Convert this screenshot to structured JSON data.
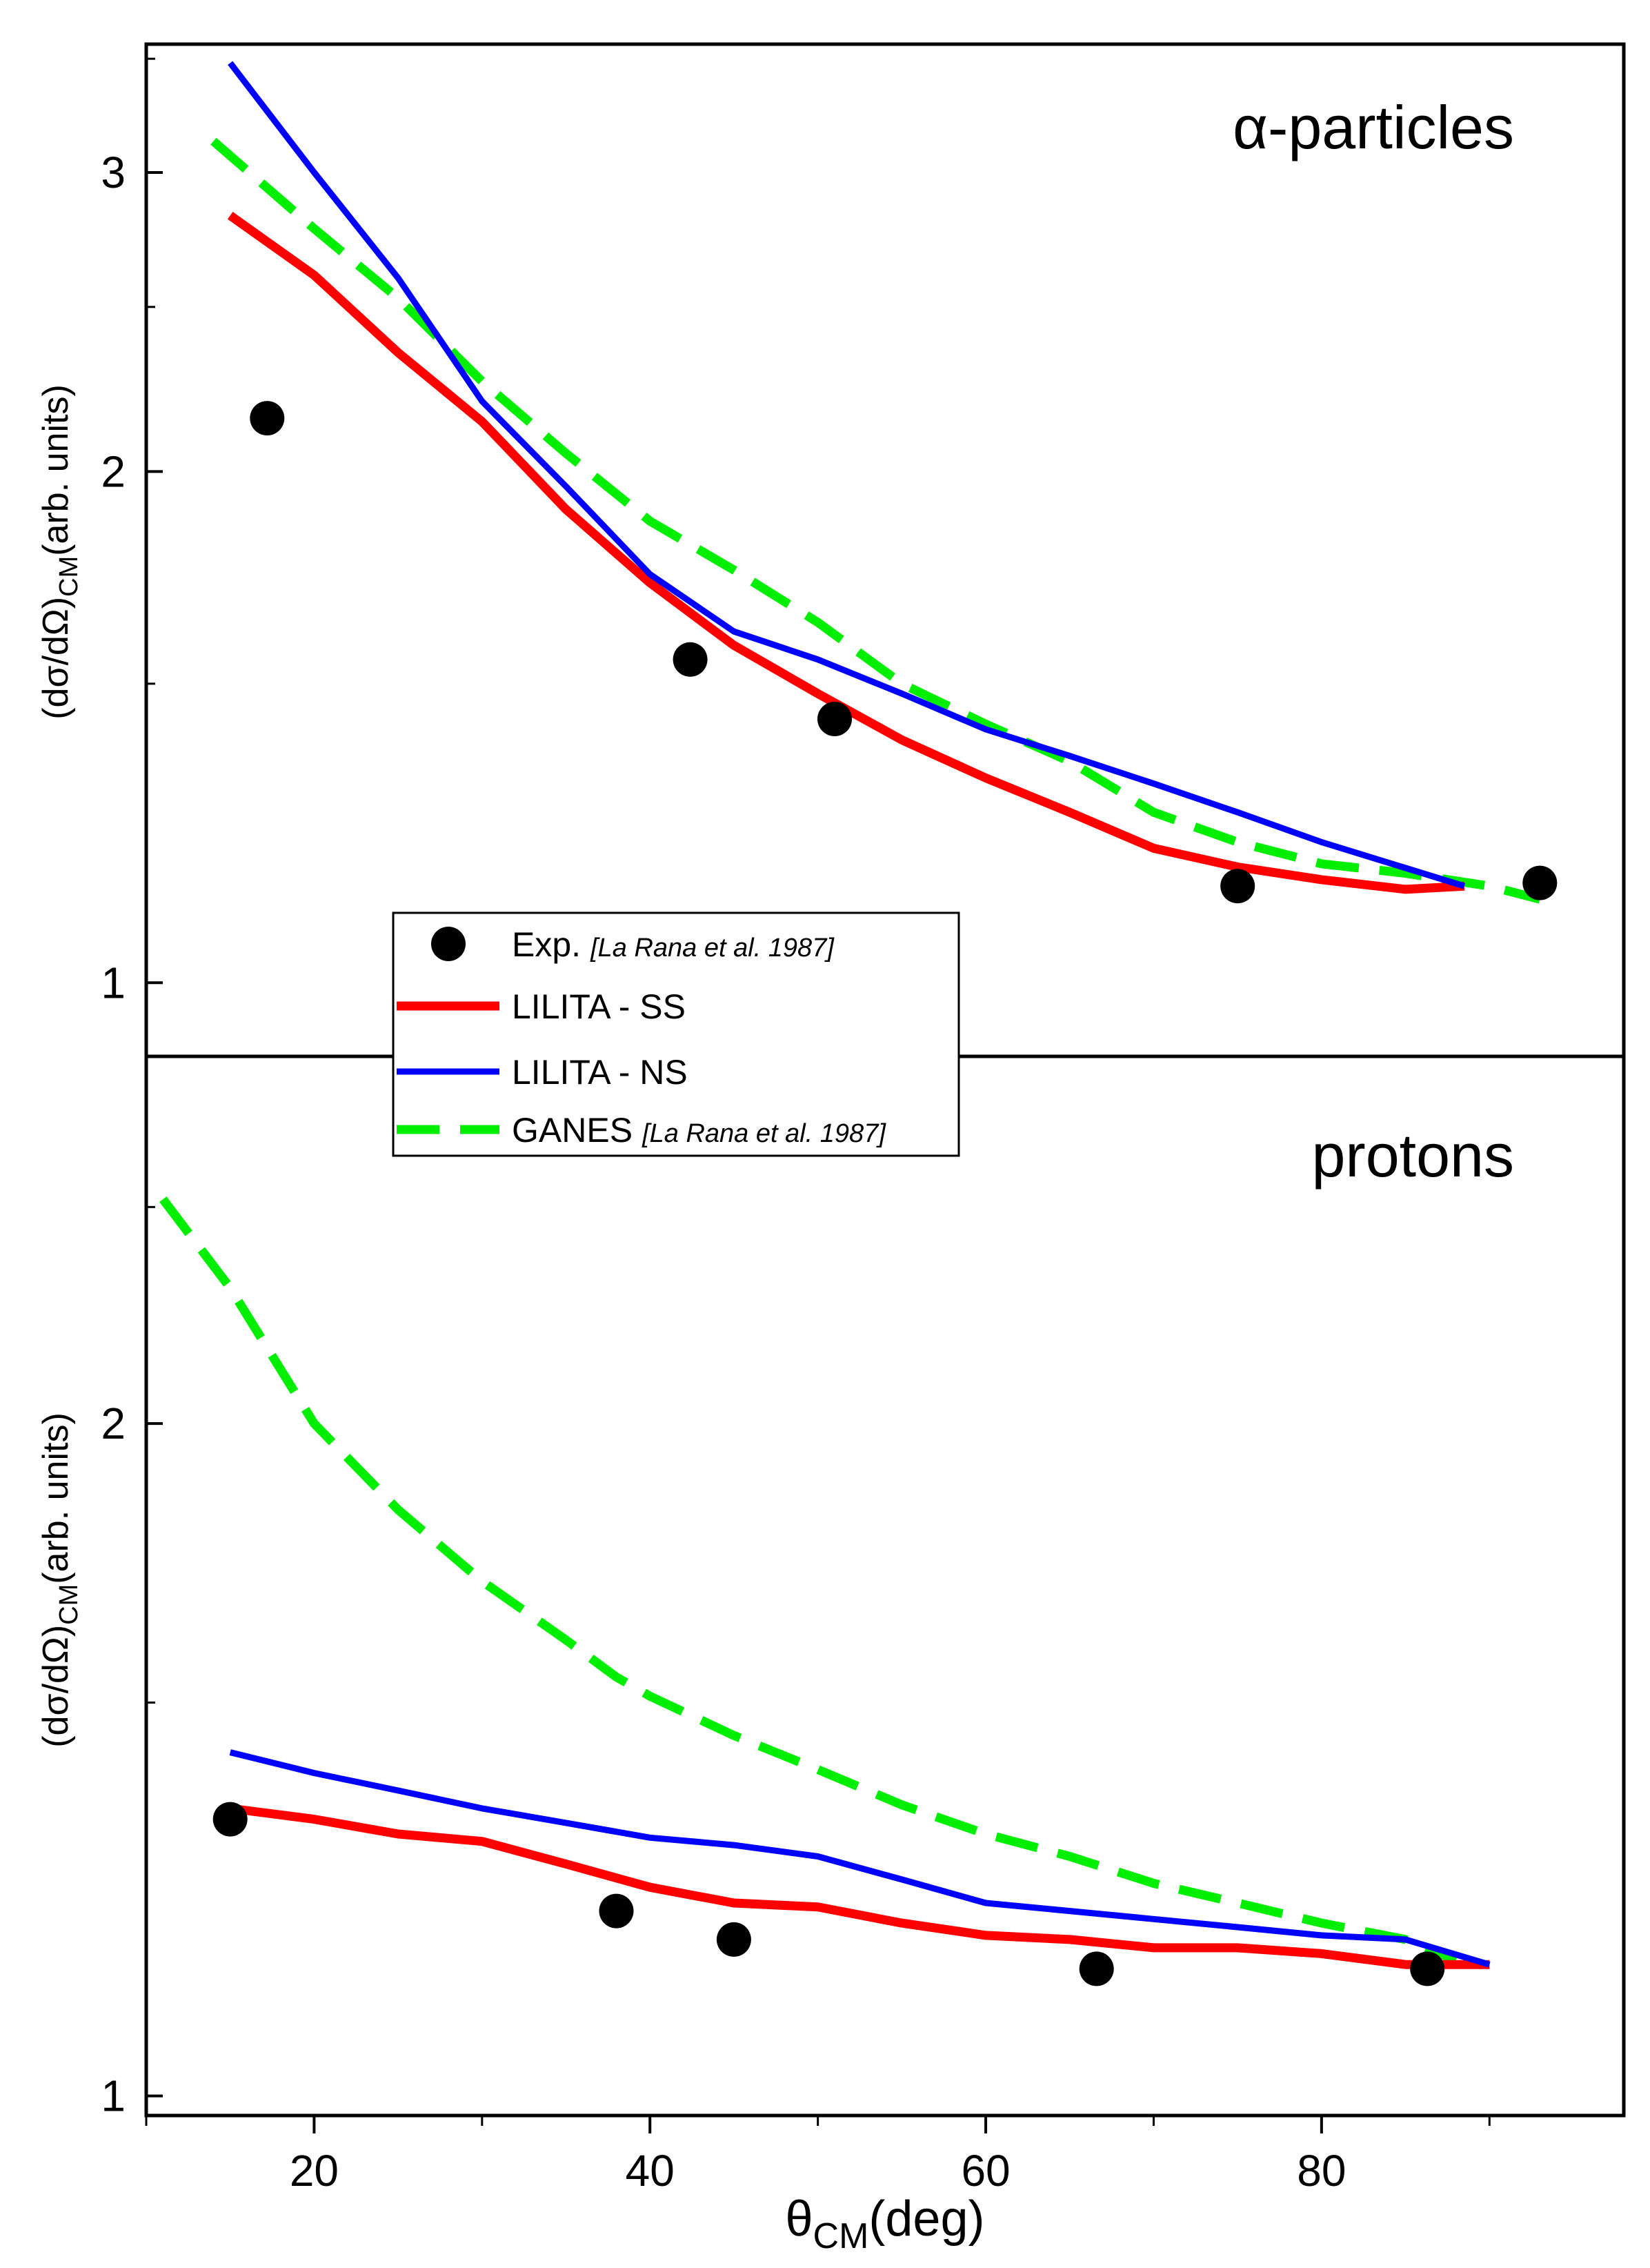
{
  "chart_data": [
    {
      "type": "line",
      "panel": "top",
      "annotation": "α-particles",
      "xlabel": "",
      "ylabel": "(dσ/dΩ)CM(arb. units)",
      "ylabel_parts": {
        "main": "(dσ/dΩ)",
        "sub": "CM",
        "rest": "(arb. units)"
      },
      "y_scale": "log",
      "xlim": [
        10,
        98
      ],
      "ylim": [
        0.905,
        3.57
      ],
      "y_major_ticks": [
        {
          "v": 1,
          "label": "1"
        },
        {
          "v": 2,
          "label": "2"
        },
        {
          "v": 3,
          "label": "3"
        }
      ],
      "y_minor_ticks": [
        1.5,
        2.5,
        3.5
      ],
      "series": [
        {
          "name": "Exp.",
          "style": "marker",
          "color": "#000000",
          "points": [
            [
              17.2,
              2.15
            ],
            [
              42.4,
              1.55
            ],
            [
              51.0,
              1.43
            ],
            [
              75.0,
              1.14
            ],
            [
              93.0,
              1.145
            ]
          ]
        },
        {
          "name": "LILITA - SS",
          "style": "solid",
          "color": "#ff0000",
          "points": [
            [
              15,
              2.83
            ],
            [
              20,
              2.61
            ],
            [
              25,
              2.35
            ],
            [
              30,
              2.14
            ],
            [
              35,
              1.9
            ],
            [
              40,
              1.72
            ],
            [
              45,
              1.58
            ],
            [
              50,
              1.48
            ],
            [
              55,
              1.39
            ],
            [
              60,
              1.32
            ],
            [
              65,
              1.26
            ],
            [
              70,
              1.2
            ],
            [
              75,
              1.17
            ],
            [
              80,
              1.15
            ],
            [
              85,
              1.135
            ],
            [
              88.5,
              1.14
            ]
          ]
        },
        {
          "name": "LILITA - NS",
          "style": "solid",
          "color": "#0000ff",
          "points": [
            [
              15,
              3.48
            ],
            [
              20,
              3.0
            ],
            [
              25,
              2.6
            ],
            [
              30,
              2.2
            ],
            [
              35,
              1.96
            ],
            [
              40,
              1.74
            ],
            [
              45,
              1.61
            ],
            [
              50,
              1.55
            ],
            [
              55,
              1.48
            ],
            [
              60,
              1.41
            ],
            [
              65,
              1.36
            ],
            [
              70,
              1.31
            ],
            [
              75,
              1.26
            ],
            [
              80,
              1.21
            ],
            [
              88.5,
              1.14
            ]
          ]
        },
        {
          "name": "GANES",
          "style": "dashed",
          "color": "#00ee00",
          "points": [
            [
              14,
              3.13
            ],
            [
              20,
              2.78
            ],
            [
              25,
              2.53
            ],
            [
              30,
              2.26
            ],
            [
              35,
              2.05
            ],
            [
              40,
              1.87
            ],
            [
              45,
              1.75
            ],
            [
              50,
              1.63
            ],
            [
              55,
              1.5
            ],
            [
              60,
              1.42
            ],
            [
              65,
              1.35
            ],
            [
              70,
              1.26
            ],
            [
              75,
              1.21
            ],
            [
              80,
              1.175
            ],
            [
              85,
              1.16
            ],
            [
              90,
              1.14
            ],
            [
              93,
              1.12
            ]
          ]
        }
      ]
    },
    {
      "type": "line",
      "panel": "bottom",
      "annotation": "protons",
      "xlabel": "θCM(deg)",
      "xlabel_parts": {
        "main": "θ",
        "sub": "CM",
        "rest": "(deg)"
      },
      "ylabel": "(dσ/dΩ)CM(arb. units)",
      "ylabel_parts": {
        "main": "(dσ/dΩ)",
        "sub": "CM",
        "rest": "(arb. units)"
      },
      "y_scale": "log",
      "xlim": [
        10,
        98
      ],
      "ylim": [
        0.98,
        2.92
      ],
      "x_major_ticks": [
        {
          "v": 20,
          "label": "20"
        },
        {
          "v": 40,
          "label": "40"
        },
        {
          "v": 60,
          "label": "60"
        },
        {
          "v": 80,
          "label": "80"
        }
      ],
      "x_minor_ticks": [
        10,
        30,
        50,
        70,
        90
      ],
      "y_major_ticks": [
        {
          "v": 1,
          "label": "1"
        },
        {
          "v": 2,
          "label": "2"
        }
      ],
      "y_minor_ticks": [
        1.5,
        2.5
      ],
      "series": [
        {
          "name": "Exp.",
          "style": "marker",
          "color": "#000000",
          "points": [
            [
              15.0,
              1.33
            ],
            [
              38.0,
              1.21
            ],
            [
              45.0,
              1.175
            ],
            [
              66.6,
              1.14
            ],
            [
              86.3,
              1.14
            ]
          ]
        },
        {
          "name": "LILITA - SS",
          "style": "solid",
          "color": "#ff0000",
          "points": [
            [
              15,
              1.345
            ],
            [
              20,
              1.33
            ],
            [
              25,
              1.31
            ],
            [
              30,
              1.3
            ],
            [
              35,
              1.27
            ],
            [
              40,
              1.24
            ],
            [
              45,
              1.22
            ],
            [
              50,
              1.215
            ],
            [
              55,
              1.195
            ],
            [
              60,
              1.18
            ],
            [
              65,
              1.175
            ],
            [
              70,
              1.165
            ],
            [
              75,
              1.165
            ],
            [
              80,
              1.158
            ],
            [
              85,
              1.145
            ],
            [
              90,
              1.145
            ]
          ]
        },
        {
          "name": "LILITA - NS",
          "style": "solid",
          "color": "#0000ff",
          "points": [
            [
              15,
              1.425
            ],
            [
              20,
              1.395
            ],
            [
              25,
              1.37
            ],
            [
              30,
              1.345
            ],
            [
              35,
              1.325
            ],
            [
              40,
              1.305
            ],
            [
              45,
              1.295
            ],
            [
              50,
              1.28
            ],
            [
              55,
              1.25
            ],
            [
              60,
              1.22
            ],
            [
              65,
              1.21
            ],
            [
              70,
              1.2
            ],
            [
              75,
              1.19
            ],
            [
              80,
              1.18
            ],
            [
              85,
              1.175
            ],
            [
              90,
              1.145
            ]
          ]
        },
        {
          "name": "GANES",
          "style": "dashed",
          "color": "#00ee00",
          "points": [
            [
              11,
              2.52
            ],
            [
              15,
              2.3
            ],
            [
              20,
              2.0
            ],
            [
              25,
              1.83
            ],
            [
              30,
              1.7
            ],
            [
              35,
              1.6
            ],
            [
              38,
              1.54
            ],
            [
              40,
              1.51
            ],
            [
              45,
              1.45
            ],
            [
              50,
              1.4
            ],
            [
              55,
              1.35
            ],
            [
              60,
              1.31
            ],
            [
              65,
              1.28
            ],
            [
              70,
              1.245
            ],
            [
              75,
              1.22
            ],
            [
              80,
              1.195
            ],
            [
              85,
              1.175
            ],
            [
              88,
              1.15
            ]
          ]
        }
      ]
    }
  ],
  "legend": {
    "placement": "center-left",
    "entries": [
      {
        "label": "Exp.",
        "cite": "[La Rana et al. 1987]",
        "style": "marker",
        "color": "#000000"
      },
      {
        "label": "LILITA - SS",
        "cite": "",
        "style": "solid",
        "color": "#ff0000"
      },
      {
        "label": "LILITA - NS",
        "cite": "",
        "style": "solid",
        "color": "#0000ff"
      },
      {
        "label": "GANES",
        "cite": "[La Rana et al. 1987]",
        "style": "dashed",
        "color": "#00ee00"
      }
    ]
  }
}
